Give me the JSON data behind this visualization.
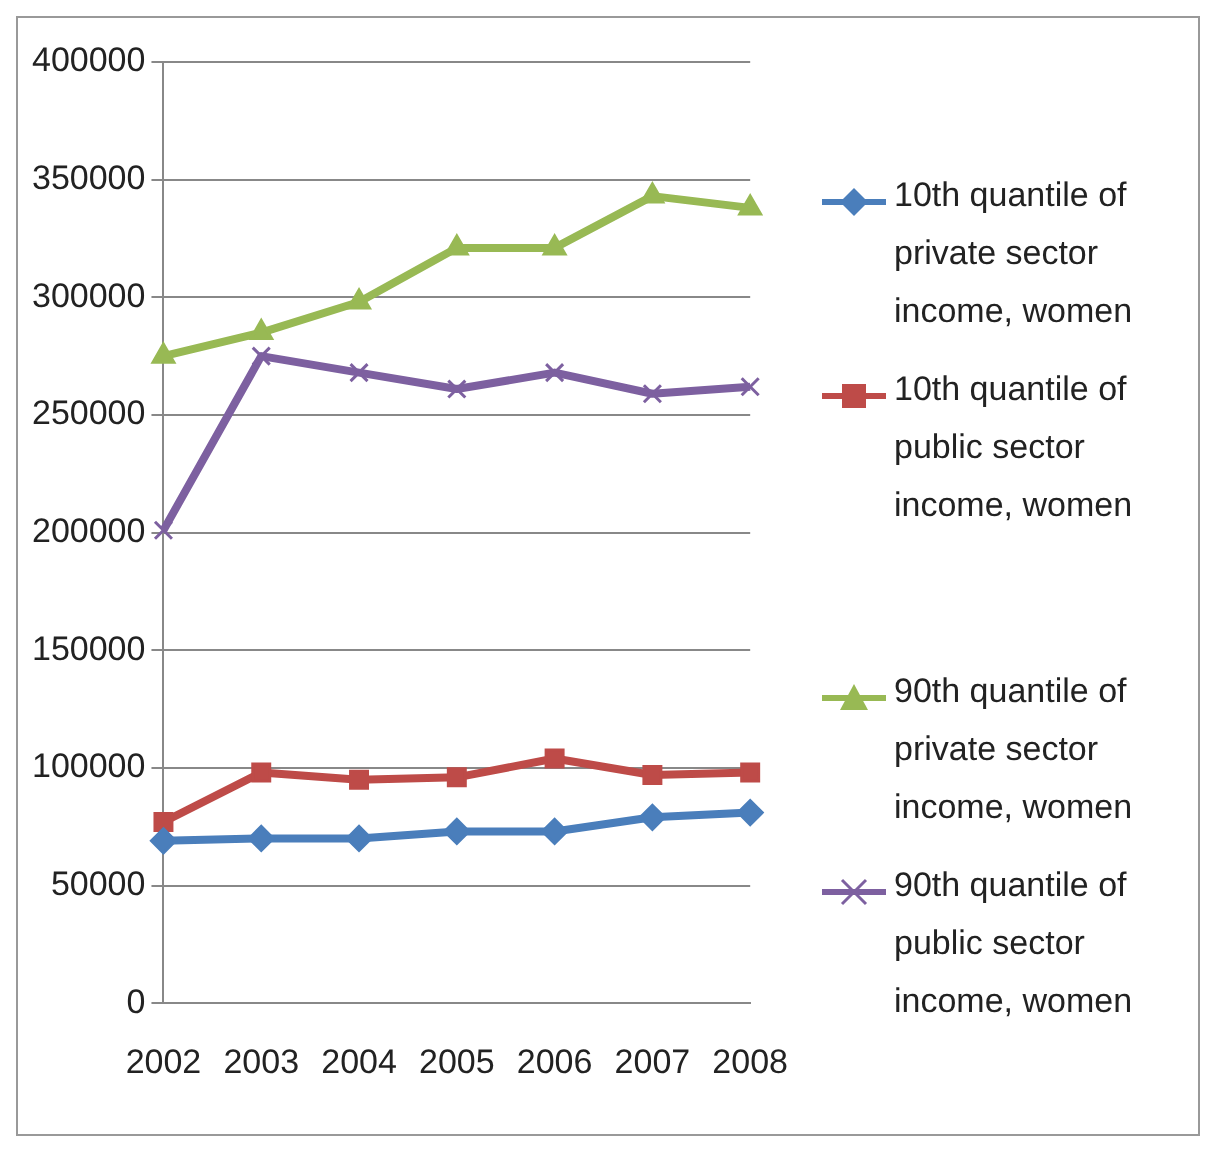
{
  "chart_data": {
    "type": "line",
    "categories": [
      "2002",
      "2003",
      "2004",
      "2005",
      "2006",
      "2007",
      "2008"
    ],
    "series": [
      {
        "name": "10th quantile of private sector income, women",
        "color": "#4a7ebb",
        "marker": "diamond",
        "values": [
          69000,
          70000,
          70000,
          73000,
          73000,
          79000,
          81000
        ]
      },
      {
        "name": "10th quantile of public sector income, women",
        "color": "#be4b48",
        "marker": "square",
        "values": [
          77000,
          98000,
          95000,
          96000,
          104000,
          97000,
          98000
        ]
      },
      {
        "name": "90th quantile of private sector income, women",
        "color": "#98b954",
        "marker": "triangle",
        "values": [
          275000,
          285000,
          298000,
          321000,
          321000,
          343000,
          338000
        ]
      },
      {
        "name": "90th quantile of public sector income, women",
        "color": "#7d60a0",
        "marker": "cross",
        "values": [
          201000,
          275000,
          268000,
          261000,
          268000,
          259000,
          262000
        ]
      }
    ],
    "ylim": [
      0,
      400000
    ],
    "yticks": [
      0,
      50000,
      100000,
      150000,
      200000,
      250000,
      300000,
      350000,
      400000
    ],
    "grid": "y",
    "legend": "right"
  }
}
